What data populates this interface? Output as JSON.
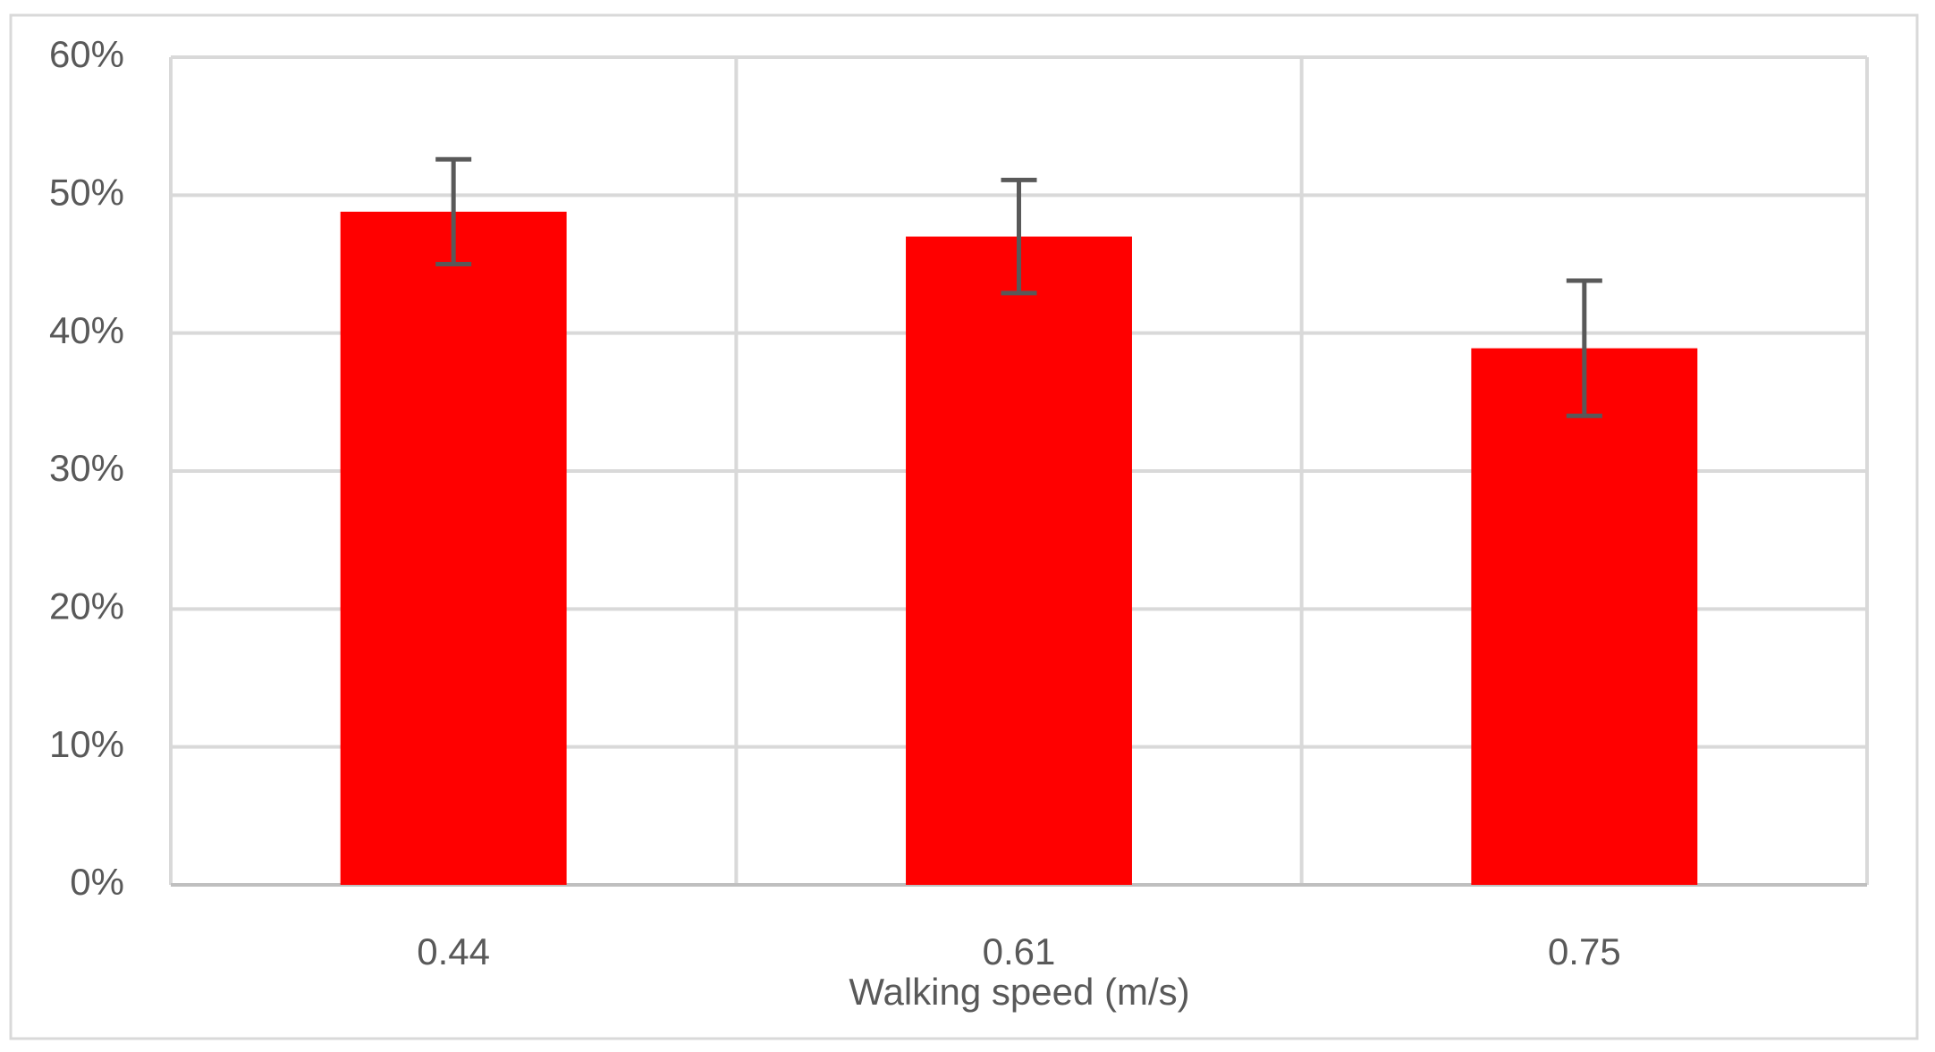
{
  "chart_data": {
    "type": "bar",
    "x_label": "Walking speed (m/s)",
    "categories": [
      "0.44",
      "0.61",
      "0.75"
    ],
    "values": [
      48.8,
      47,
      38.9
    ],
    "errors": [
      3.8,
      4.1,
      4.9
    ],
    "color": "#ff0000",
    "ylim": [
      0,
      60
    ],
    "yticks": [
      {
        "value": 0,
        "label": "0%"
      },
      {
        "value": 10,
        "label": "10%"
      },
      {
        "value": 20,
        "label": "20%"
      },
      {
        "value": 30,
        "label": "30%"
      },
      {
        "value": 40,
        "label": "40%"
      },
      {
        "value": 50,
        "label": "50%"
      },
      {
        "value": 60,
        "label": "60%"
      }
    ],
    "grid": true
  }
}
